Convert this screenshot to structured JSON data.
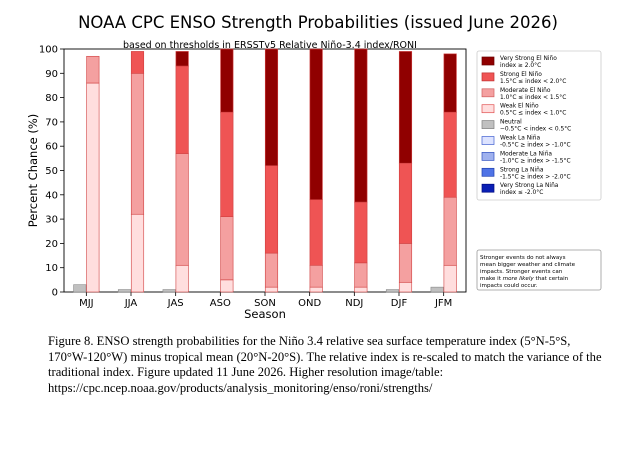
{
  "chart_data": {
    "type": "bar",
    "title": "NOAA CPC ENSO Strength Probabilities (issued June 2026)",
    "subtitle": "based on thresholds in ERSSTv5 Relative Niño-3.4 index/RONI",
    "xlabel": "Season",
    "ylabel": "Percent Chance (%)",
    "ylim": [
      0,
      100
    ],
    "yticks": [
      "0",
      "10",
      "20",
      "30",
      "40",
      "50",
      "60",
      "70",
      "80",
      "90",
      "100"
    ],
    "categories": [
      "MJJ",
      "JJA",
      "JAS",
      "ASO",
      "SON",
      "OND",
      "NDJ",
      "DJF",
      "JFM"
    ],
    "grid": false,
    "legend_position": "right",
    "la_nina_bars": [
      {
        "name": "Neutral",
        "values": [
          3,
          1,
          1,
          0,
          0,
          0,
          0,
          1,
          2
        ],
        "color": "#c0c0c0"
      }
    ],
    "el_nino_bars": [
      {
        "name": "Weak El Niño",
        "values": [
          86,
          32,
          11,
          5,
          2,
          2,
          2,
          4,
          11
        ],
        "color": "#ffdede"
      },
      {
        "name": "Moderate El Niño",
        "values": [
          11,
          58,
          46,
          26,
          14,
          9,
          10,
          16,
          28
        ],
        "color": "#f4a0a0"
      },
      {
        "name": "Strong El Niño",
        "values": [
          0,
          9,
          36,
          43,
          36,
          27,
          25,
          33,
          35
        ],
        "color": "#ef5454"
      },
      {
        "name": "Very Strong El Niño",
        "values": [
          0,
          0,
          6,
          26,
          48,
          62,
          63,
          46,
          24
        ],
        "color": "#900000"
      }
    ]
  },
  "legend": [
    {
      "line1": "Very Strong El Niño",
      "line2": "index ≥ 2.0°C",
      "fill": "#900000",
      "stroke": "#6a0000"
    },
    {
      "line1": "Strong El Niño",
      "line2": "1.5°C ≤ index < 2.0°C",
      "fill": "#ef5454",
      "stroke": "#c03030"
    },
    {
      "line1": "Moderate El Niño",
      "line2": "1.0°C ≤ index < 1.5°C",
      "fill": "#f4a0a0",
      "stroke": "#d06060"
    },
    {
      "line1": "Weak El Niño",
      "line2": "0.5°C ≤ index < 1.0°C",
      "fill": "#ffdede",
      "stroke": "#e05050"
    },
    {
      "line1": "Neutral",
      "line2": "−0.5°C < index < 0.5°C",
      "fill": "#c0c0c0",
      "stroke": "#808080"
    },
    {
      "line1": "Weak La Niña",
      "line2": "-0.5°C ≥ index > -1.0°C",
      "fill": "#dde3ff",
      "stroke": "#4060d0"
    },
    {
      "line1": "Moderate La Niña",
      "line2": "-1.0°C ≥ index > -1.5°C",
      "fill": "#9fb1ee",
      "stroke": "#3050c0"
    },
    {
      "line1": "Strong La Niña",
      "line2": "-1.5°C ≥ index > -2.0°C",
      "fill": "#4f73e6",
      "stroke": "#2040b0"
    },
    {
      "line1": "Very Strong La Niña",
      "line2": "index ≤ -2.0°C",
      "fill": "#0a1fb4",
      "stroke": "#000a80"
    }
  ],
  "note": {
    "line1": "Stronger events do not always",
    "line2": "mean bigger weather and climate",
    "line3": "impacts. Stronger events can",
    "line4_pre": "make it ",
    "line4_em": "more likely",
    "line4_post": " that certain",
    "line5": "impacts could occur."
  },
  "caption": "Figure 8. ENSO strength probabilities for the Niño 3.4 relative sea surface temperature index (5°N-5°S, 170°W-120°W) minus tropical mean (20°N-20°S). The relative index is re-scaled to match the variance of the traditional index. Figure updated 11 June 2026. Higher resolution image/table: https://cpc.ncep.noaa.gov/products/analysis_monitoring/enso/roni/strengths/"
}
